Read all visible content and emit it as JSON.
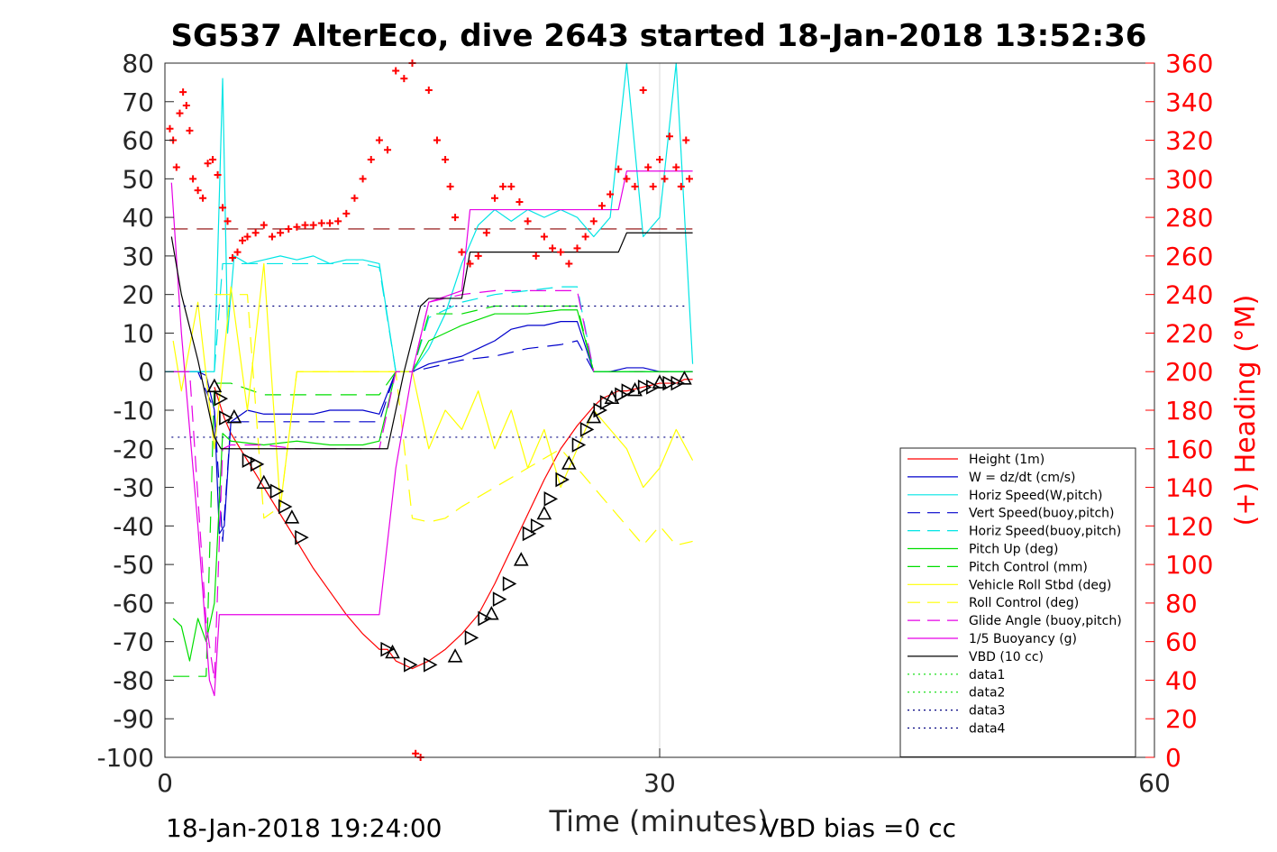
{
  "chart_data": {
    "type": "line",
    "title": "SG537 AlterEco, dive 2643 started 18-Jan-2018 13:52:36",
    "xlabel": "Time (minutes)",
    "ylabel_left": "",
    "ylabel_right": "(+) Heading (°M)",
    "xlim": [
      0,
      60
    ],
    "ylim_left": [
      -100,
      80
    ],
    "ylim_right": [
      0,
      360
    ],
    "xticks": [
      "0",
      "30",
      "60"
    ],
    "yticks_left": [
      "80",
      "70",
      "60",
      "50",
      "40",
      "30",
      "20",
      "10",
      "0",
      "-10",
      "-20",
      "-30",
      "-40",
      "-50",
      "-60",
      "-70",
      "-80",
      "-90",
      "-100"
    ],
    "yticks_right": [
      "360",
      "340",
      "320",
      "300",
      "280",
      "260",
      "240",
      "220",
      "200",
      "180",
      "160",
      "140",
      "120",
      "100",
      "80",
      "60",
      "40",
      "20",
      "0"
    ],
    "footer_left": "18-Jan-2018 19:24:00",
    "footer_right": "VBD bias =0 cc",
    "grid": "x only",
    "legend_position": "bottom-right",
    "colors": {
      "red": "#ff0000",
      "blue": "#0000cc",
      "cyan": "#00e5e5",
      "green": "#00dd00",
      "yellow": "#ffff00",
      "magenta": "#e600e6",
      "black": "#000000",
      "navy": "#000080"
    },
    "series": [
      {
        "name": "Height (1m)",
        "color": "#ff0000",
        "style": "solid",
        "x": [
          3.0,
          3.3,
          3.6,
          4.0,
          5.0,
          6.0,
          7.0,
          8.0,
          9.0,
          10.0,
          11.0,
          12.0,
          13.0,
          13.5,
          14.0,
          15.0,
          15.5,
          16.0,
          17.0,
          18.0,
          19.0,
          20.0,
          21.0,
          22.0,
          23.0,
          24.0,
          25.0,
          26.0,
          26.5,
          27.0,
          27.5,
          28.0,
          29.0,
          30.0,
          31.0,
          31.5,
          32.0
        ],
        "y": [
          -4,
          -8,
          -12,
          -16,
          -23,
          -30,
          -37,
          -44,
          -51,
          -57,
          -63,
          -68,
          -72,
          -72,
          -75,
          -77,
          -76,
          -75,
          -72,
          -68,
          -63,
          -55,
          -46,
          -37,
          -28,
          -20,
          -14,
          -9,
          -7,
          -6,
          -5,
          -5,
          -4,
          -3,
          -3,
          -2,
          -2
        ]
      },
      {
        "name": "W = dz/dt (cm/s)",
        "color": "#0000cc",
        "style": "solid",
        "x": [
          0,
          1,
          2,
          2.5,
          3.0,
          3.3,
          3.6,
          4,
          5,
          6,
          7,
          8,
          9,
          10,
          11,
          12,
          13,
          14,
          15,
          16,
          17,
          18,
          19,
          20,
          21,
          22,
          23,
          24,
          25,
          26,
          27,
          28,
          29,
          30,
          31,
          32
        ],
        "y": [
          0,
          0,
          0,
          -1,
          -10,
          -42,
          -40,
          -13,
          -10,
          -11,
          -11,
          -11,
          -11,
          -10,
          -10,
          -10,
          -11,
          0,
          0,
          2,
          3,
          4,
          6,
          8,
          11,
          12,
          12,
          13,
          13,
          0,
          0,
          1,
          1,
          0,
          0,
          0
        ]
      },
      {
        "name": "Horiz Speed(W,pitch)",
        "color": "#00e5e5",
        "style": "solid",
        "x": [
          0,
          1,
          2,
          3.0,
          3.5,
          3.8,
          4.2,
          5,
          6,
          7,
          8,
          9,
          10,
          11,
          12,
          13,
          14,
          15,
          16,
          17,
          18,
          19,
          20,
          21,
          22,
          23,
          24,
          25,
          26,
          27,
          28,
          29,
          30,
          31,
          32
        ],
        "y": [
          0,
          0,
          0,
          0,
          76,
          10,
          30,
          28,
          29,
          30,
          29,
          30,
          28,
          29,
          29,
          28,
          0,
          0,
          6,
          15,
          28,
          38,
          42,
          39,
          42,
          40,
          42,
          40,
          35,
          40,
          80,
          35,
          40,
          80,
          2
        ]
      },
      {
        "name": "Vert Speed(buoy,pitch)",
        "color": "#0000cc",
        "style": "dashed",
        "x": [
          0,
          2,
          3.0,
          3.5,
          4,
          6,
          8,
          10,
          12,
          13,
          14,
          15,
          16,
          18,
          20,
          22,
          24,
          25,
          26,
          28,
          30,
          32
        ],
        "y": [
          0,
          0,
          -10,
          -44,
          -13,
          -13,
          -13,
          -13,
          -13,
          -13,
          0,
          0,
          1,
          3,
          4,
          6,
          7,
          8,
          0,
          0,
          0,
          0
        ]
      },
      {
        "name": "Horiz Speed(buoy,pitch)",
        "color": "#00e5e5",
        "style": "dashed",
        "x": [
          0,
          2,
          3.0,
          3.5,
          4,
          6,
          8,
          10,
          12,
          13,
          14,
          15,
          16,
          18,
          20,
          22,
          24,
          25,
          26,
          28,
          30,
          32
        ],
        "y": [
          0,
          0,
          0,
          28,
          28,
          28,
          28,
          28,
          28,
          27,
          0,
          0,
          14,
          18,
          20,
          21,
          22,
          22,
          0,
          0,
          0,
          0
        ]
      },
      {
        "name": "Pitch Up (deg)",
        "color": "#00dd00",
        "style": "solid",
        "x": [
          0.5,
          1,
          1.5,
          2,
          2.5,
          3.0,
          3.5,
          4,
          6,
          8,
          10,
          12,
          13,
          14,
          15,
          16,
          18,
          20,
          22,
          24,
          25,
          26,
          28,
          30,
          32
        ],
        "y": [
          -64,
          -66,
          -75,
          -64,
          -70,
          -60,
          -16,
          -18,
          -19,
          -18,
          -19,
          -19,
          -18,
          0,
          0,
          8,
          12,
          15,
          15,
          16,
          16,
          0,
          0,
          0,
          0
        ]
      },
      {
        "name": "Pitch Control (mm)",
        "color": "#00dd00",
        "style": "dashed",
        "x": [
          0.5,
          1.5,
          2.5,
          3.0,
          3.5,
          4,
          6,
          8,
          10,
          12,
          13,
          14,
          15,
          16,
          18,
          20,
          22,
          24,
          25,
          26
        ],
        "y": [
          -79,
          -79,
          -79,
          -3,
          -3,
          -3,
          -6,
          -6,
          -6,
          -6,
          -6,
          0,
          0,
          15,
          15,
          17,
          17,
          17,
          17,
          0
        ]
      },
      {
        "name": "Vehicle Roll Stbd (deg)",
        "color": "#ffff00",
        "style": "solid",
        "x": [
          0.5,
          1,
          2,
          3,
          4,
          5,
          6,
          7,
          8,
          9,
          10,
          11,
          12,
          13,
          14,
          15,
          16,
          17,
          18,
          19,
          20,
          21,
          22,
          23,
          24,
          25,
          26,
          27,
          28,
          29,
          30,
          31,
          32
        ],
        "y": [
          8,
          -5,
          18,
          -20,
          22,
          -10,
          28,
          -35,
          0,
          0,
          0,
          0,
          0,
          0,
          0,
          0,
          -20,
          -10,
          -15,
          -5,
          -20,
          -10,
          -25,
          -15,
          -30,
          -20,
          -10,
          -15,
          -20,
          -30,
          -25,
          -15,
          -23
        ]
      },
      {
        "name": "Roll Control (deg)",
        "color": "#ffff00",
        "style": "dashed",
        "x": [
          3,
          4,
          5,
          6,
          7,
          8,
          10,
          12,
          14,
          15,
          16,
          17,
          18,
          20,
          22,
          24,
          26,
          28,
          29,
          30,
          31,
          32
        ],
        "y": [
          20,
          20,
          20,
          -38,
          -35,
          0,
          0,
          0,
          0,
          -38,
          -39,
          -38,
          -35,
          -30,
          -25,
          -20,
          -30,
          -40,
          -45,
          -40,
          -45,
          -44
        ]
      },
      {
        "name": "Glide Angle (buoy,pitch)",
        "color": "#e600e6",
        "style": "dashed",
        "x": [
          0.5,
          1.5,
          2.5,
          3.0,
          3.5,
          4,
          6,
          8,
          10,
          12,
          13,
          14,
          15,
          16,
          18,
          20,
          22,
          24,
          25,
          26
        ],
        "y": [
          0,
          0,
          -65,
          -80,
          -20,
          -19,
          -19,
          -20,
          -20,
          -20,
          -20,
          0,
          0,
          18,
          20,
          21,
          21,
          21,
          21,
          0
        ]
      },
      {
        "name": "1/5 Buoyancy (g)",
        "color": "#e600e6",
        "style": "solid",
        "x": [
          0.4,
          1.0,
          2.0,
          2.7,
          3.0,
          3.3,
          4,
          8,
          12,
          13.0,
          14.0,
          15.0,
          16.0,
          18.0,
          18.5,
          20,
          25,
          27.5,
          28.0,
          32
        ],
        "y": [
          49,
          10,
          -40,
          -80,
          -84,
          -63,
          -63,
          -63,
          -63,
          -63,
          -25,
          0,
          18,
          21,
          42,
          42,
          42,
          42,
          52,
          52
        ]
      },
      {
        "name": "VBD (10 cc)",
        "color": "#000000",
        "style": "solid",
        "x": [
          0.4,
          1.0,
          2.0,
          3.0,
          3.4,
          5,
          10,
          13.0,
          13.5,
          14.5,
          15.5,
          16.0,
          17.0,
          18.0,
          18.5,
          20,
          25,
          27.5,
          28.0,
          32
        ],
        "y": [
          35,
          20,
          3,
          -17,
          -20,
          -20,
          -20,
          -20,
          -20,
          0,
          17,
          19,
          19,
          19,
          31,
          31,
          31,
          31,
          36,
          36
        ]
      },
      {
        "name": "data1",
        "color": "#00dd00",
        "style": "dotted",
        "x": [],
        "y": []
      },
      {
        "name": "data2",
        "color": "#00dd00",
        "style": "dotted",
        "x": [],
        "y": []
      },
      {
        "name": "data3",
        "color": "#000080",
        "style": "dotted",
        "x": [
          0.4,
          31.5
        ],
        "y": [
          17,
          17
        ]
      },
      {
        "name": "data4",
        "color": "#000080",
        "style": "dotted",
        "x": [
          0.4,
          31.5
        ],
        "y": [
          -17,
          -17
        ]
      }
    ],
    "heading_mean": {
      "color": "#8b0000",
      "style": "dashed",
      "x": [
        0.4,
        32
      ],
      "y_right": [
        274,
        274
      ]
    },
    "heading_points": {
      "color": "#ff0000",
      "marker": "+",
      "x": [
        0.3,
        0.5,
        0.7,
        0.9,
        1.1,
        1.3,
        1.5,
        1.7,
        2.0,
        2.3,
        2.6,
        2.9,
        3.2,
        3.5,
        3.8,
        4.1,
        4.4,
        4.7,
        5.0,
        5.5,
        6.0,
        6.5,
        7.0,
        7.5,
        8.0,
        8.5,
        9.0,
        9.5,
        10.0,
        10.5,
        11.0,
        11.5,
        12.0,
        12.5,
        13.0,
        13.5,
        14.0,
        14.5,
        15.0,
        15.2,
        15.5,
        16.0,
        16.5,
        17.0,
        17.3,
        17.6,
        18.0,
        18.5,
        19.0,
        19.5,
        20.0,
        20.5,
        21.0,
        21.5,
        22.0,
        22.5,
        23.0,
        23.5,
        24.0,
        24.5,
        25.0,
        25.5,
        26.0,
        26.5,
        27.0,
        27.5,
        28.0,
        28.5,
        29.0,
        29.3,
        29.6,
        30.0,
        30.3,
        30.6,
        31.0,
        31.3,
        31.6,
        31.8
      ],
      "y": [
        326,
        320,
        306,
        334,
        345,
        338,
        325,
        300,
        294,
        290,
        308,
        310,
        302,
        285,
        278,
        259,
        262,
        268,
        270,
        272,
        276,
        270,
        272,
        274,
        275,
        276,
        276,
        277,
        277,
        278,
        282,
        290,
        300,
        310,
        320,
        315,
        356,
        352,
        360,
        2,
        0,
        346,
        320,
        310,
        296,
        280,
        262,
        256,
        260,
        272,
        290,
        296,
        296,
        288,
        278,
        260,
        270,
        264,
        262,
        256,
        264,
        270,
        278,
        286,
        292,
        305,
        300,
        296,
        346,
        306,
        296,
        310,
        300,
        322,
        306,
        296,
        320,
        300
      ]
    },
    "depth_triangles": {
      "color": "#000000",
      "marker": "triangle",
      "x": [
        3.0,
        3.3,
        3.6,
        4.2,
        5.0,
        5.5,
        6.0,
        6.7,
        7.2,
        7.7,
        8.2,
        13.4,
        13.8,
        14.8,
        16.0,
        17.6,
        18.5,
        19.3,
        19.8,
        20.2,
        20.8,
        21.6,
        22.0,
        22.5,
        23.0,
        23.3,
        24.0,
        24.5,
        25.0,
        25.5,
        26.0,
        26.3,
        26.7,
        27.1,
        27.6,
        28.0,
        28.5,
        29.0,
        29.5,
        30.0,
        30.5,
        31.0,
        31.5
      ],
      "y": [
        -4,
        -7,
        -12,
        -12,
        -23,
        -24,
        -29,
        -31,
        -35,
        -38,
        -43,
        -72,
        -73,
        -76,
        -76,
        -74,
        -69,
        -64,
        -63,
        -59,
        -55,
        -49,
        -42,
        -40,
        -37,
        -33,
        -28,
        -24,
        -19,
        -15,
        -12,
        -10,
        -8,
        -7,
        -6,
        -5,
        -5,
        -4,
        -4,
        -3,
        -3,
        -3,
        -2
      ]
    }
  }
}
